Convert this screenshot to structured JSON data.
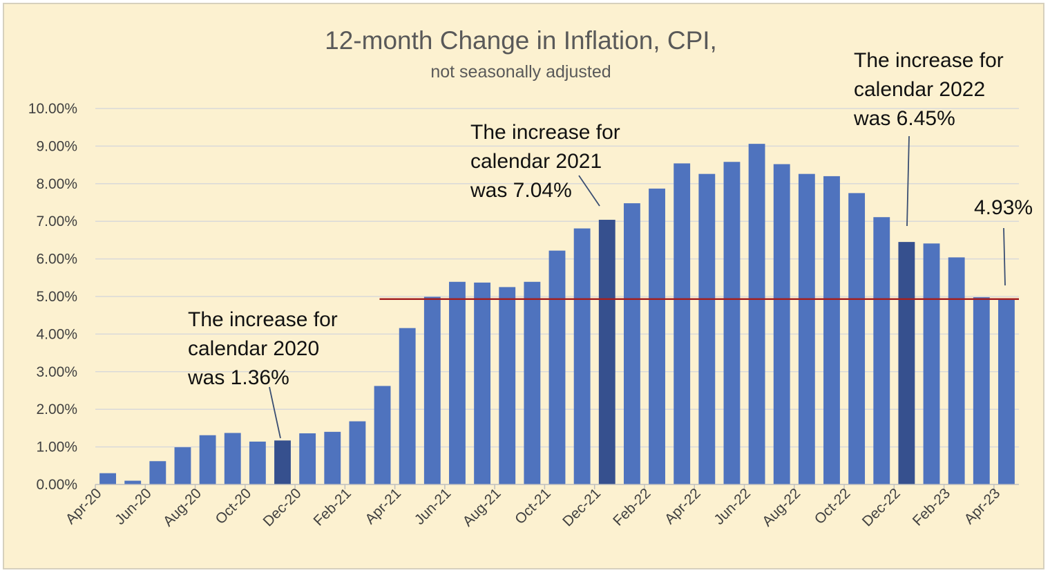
{
  "chart_data": {
    "type": "bar",
    "title": "12-month Change in Inflation, CPI,",
    "subtitle": "not seasonally adjusted",
    "categories": [
      "Apr-20",
      "May-20",
      "Jun-20",
      "Jul-20",
      "Aug-20",
      "Sep-20",
      "Oct-20",
      "Nov-20",
      "Dec-20",
      "Jan-21",
      "Feb-21",
      "Mar-21",
      "Apr-21",
      "May-21",
      "Jun-21",
      "Jul-21",
      "Aug-21",
      "Sep-21",
      "Oct-21",
      "Nov-21",
      "Dec-21",
      "Jan-22",
      "Feb-22",
      "Mar-22",
      "Apr-22",
      "May-22",
      "Jun-22",
      "Jul-22",
      "Aug-22",
      "Sep-22",
      "Oct-22",
      "Nov-22",
      "Dec-22",
      "Jan-23",
      "Feb-23",
      "Mar-23",
      "Apr-23"
    ],
    "x_tick_labels": [
      "Apr-20",
      "Jun-20",
      "Aug-20",
      "Oct-20",
      "Dec-20",
      "Feb-21",
      "Apr-21",
      "Jun-21",
      "Aug-21",
      "Oct-21",
      "Dec-21",
      "Feb-22",
      "Apr-22",
      "Jun-22",
      "Aug-22",
      "Oct-22",
      "Dec-22",
      "Feb-23",
      "Apr-23"
    ],
    "values": [
      0.3,
      0.1,
      0.62,
      0.99,
      1.31,
      1.37,
      1.14,
      1.17,
      1.36,
      1.4,
      1.68,
      2.62,
      4.16,
      4.99,
      5.39,
      5.37,
      5.25,
      5.39,
      6.22,
      6.81,
      7.04,
      7.48,
      7.87,
      8.54,
      8.26,
      8.58,
      9.06,
      8.52,
      8.26,
      8.2,
      7.75,
      7.11,
      6.45,
      6.41,
      6.04,
      4.98,
      4.93
    ],
    "highlighted_categories": [
      "Nov-20",
      "Dec-21",
      "Dec-22"
    ],
    "ylim": [
      0,
      10
    ],
    "y_tick_labels": [
      "0.00%",
      "1.00%",
      "2.00%",
      "3.00%",
      "4.00%",
      "5.00%",
      "6.00%",
      "7.00%",
      "8.00%",
      "9.00%",
      "10.00%"
    ],
    "reference_line": {
      "value": 4.93,
      "start_category": "Mar-21"
    },
    "grid": true,
    "colors": {
      "bar": "#4f73be",
      "highlight": "#36508e",
      "reference_line": "#a32020",
      "grid": "#d9d9d9",
      "background": "#fcf1d0"
    },
    "annotations": [
      {
        "lines": [
          "The increase for",
          "calendar 2020",
          "was 1.36%"
        ],
        "target_category": "Nov-20"
      },
      {
        "lines": [
          "The increase for",
          "calendar 2021",
          "was 7.04%"
        ],
        "target_category": "Dec-21"
      },
      {
        "lines": [
          "The increase for",
          "calendar 2022",
          "was 6.45%"
        ],
        "target_category": "Dec-22"
      },
      {
        "lines": [
          "4.93%"
        ],
        "target_category": "Apr-23"
      }
    ]
  }
}
